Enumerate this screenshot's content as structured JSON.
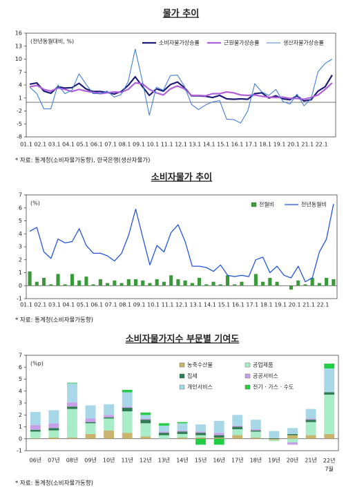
{
  "chart_data": [
    {
      "type": "line",
      "title": "물가 추이",
      "ylabel": "(전년동월대비, %)",
      "note": "* 자료: 통계청(소비자물가동향), 한국은행(생산자물가)",
      "categories": [
        "01.1",
        null,
        "02.1",
        null,
        "03.1",
        null,
        "04.1",
        null,
        "05.1",
        null,
        "06.1",
        null,
        "07.1",
        null,
        "08.1",
        null,
        "09.1",
        null,
        "10.1",
        null,
        "11.1",
        null,
        "12.1",
        null,
        "13.1",
        null,
        "14.1",
        null,
        "15.1",
        null,
        "16.1",
        null,
        "17.1",
        null,
        "18.1",
        null,
        "19.1",
        null,
        "20.1",
        null,
        "21.1",
        null,
        "22.1",
        null
      ],
      "series": [
        {
          "name": "소비자물가상승률",
          "color": "#1c1c78",
          "width": 2.2,
          "values": [
            4.2,
            4.5,
            2.6,
            2.1,
            3.6,
            3.3,
            3.4,
            4.4,
            3.1,
            2.5,
            2.5,
            2.3,
            1.9,
            2.5,
            3.9,
            5.9,
            3.7,
            1.6,
            3.1,
            2.6,
            4.1,
            4.7,
            3.4,
            1.5,
            1.5,
            1.4,
            1.1,
            1.6,
            0.8,
            0.7,
            0.8,
            0.7,
            2.0,
            2.2,
            1.0,
            1.5,
            0.8,
            0.6,
            1.5,
            0.3,
            0.6,
            2.6,
            3.6,
            6.3
          ]
        },
        {
          "name": "근원물가상승률",
          "color": "#b060d8",
          "width": 2.2,
          "values": [
            3.6,
            3.9,
            3.0,
            2.6,
            3.3,
            3.0,
            2.5,
            3.0,
            2.6,
            2.3,
            2.0,
            2.2,
            2.4,
            2.3,
            3.0,
            4.5,
            4.3,
            3.0,
            2.2,
            1.7,
            3.1,
            3.8,
            3.1,
            1.6,
            1.6,
            1.5,
            2.0,
            2.0,
            2.4,
            2.2,
            1.7,
            1.6,
            1.7,
            1.4,
            1.2,
            1.1,
            1.2,
            0.9,
            0.9,
            0.7,
            1.1,
            1.7,
            3.0,
            4.5
          ]
        },
        {
          "name": "생산자물가상승률",
          "color": "#3f7fd8",
          "width": 1.1,
          "values": [
            3.5,
            2.0,
            -1.5,
            -1.5,
            4.0,
            2.0,
            2.8,
            6.6,
            4.2,
            2.0,
            2.0,
            2.6,
            1.2,
            1.8,
            4.8,
            12.3,
            5.0,
            -3.0,
            3.5,
            2.8,
            6.2,
            6.3,
            3.7,
            -0.5,
            -1.7,
            -0.6,
            0.1,
            0.4,
            -3.9,
            -4.0,
            -4.8,
            -2.0,
            4.3,
            2.4,
            1.6,
            3.0,
            0.2,
            -0.4,
            1.9,
            -0.8,
            0.8,
            7.1,
            9.0,
            10.0
          ]
        }
      ],
      "ylim": [
        -8,
        16
      ],
      "yticks": [
        -8,
        -5,
        -2,
        1,
        4,
        7,
        10,
        13,
        16
      ],
      "legend": "upper right"
    },
    {
      "type": "combo",
      "title": "소비자물가 추이",
      "ylabel": "(%)",
      "note": "* 자료: 통계청(소비자물가동향)",
      "categories": [
        "01.1",
        null,
        "02.1",
        null,
        "03.1",
        null,
        "04.1",
        null,
        "05.1",
        null,
        "06.1",
        null,
        "07.1",
        null,
        "08.1",
        null,
        "09.1",
        null,
        "10.1",
        null,
        "11.1",
        null,
        "12.1",
        null,
        "13.1",
        null,
        "14.1",
        null,
        "15.1",
        null,
        "16.1",
        null,
        "17.1",
        null,
        "18.1",
        null,
        "19.1",
        null,
        "20.1",
        null,
        "21.1",
        null,
        "22.1",
        null
      ],
      "series": [
        {
          "name": "전월비",
          "color": "#3a9a3a",
          "kind": "bar",
          "values": [
            1.1,
            0.3,
            0.6,
            0.1,
            0.9,
            0.1,
            0.9,
            0.4,
            0.7,
            0.1,
            0.5,
            0.2,
            0.4,
            0.2,
            0.5,
            0.5,
            0.4,
            0.2,
            0.5,
            0.3,
            0.8,
            0.5,
            0.4,
            0.2,
            0.6,
            0.1,
            0.3,
            0.1,
            0.8,
            0.1,
            0.3,
            0.0,
            0.9,
            0.3,
            0.6,
            0.3,
            0.0,
            -0.3,
            0.4,
            0.1,
            0.6,
            0.2,
            0.6,
            0.5
          ]
        },
        {
          "name": "전년동월비",
          "color": "#2255dd",
          "kind": "line",
          "values": [
            4.2,
            4.5,
            2.6,
            2.1,
            3.6,
            3.3,
            3.4,
            4.4,
            3.1,
            2.5,
            2.5,
            2.3,
            1.9,
            2.5,
            3.9,
            5.9,
            3.7,
            1.6,
            3.1,
            2.6,
            4.1,
            4.7,
            3.4,
            1.5,
            1.5,
            1.4,
            1.1,
            1.6,
            0.8,
            0.7,
            0.8,
            0.7,
            2.0,
            2.2,
            1.0,
            1.5,
            0.8,
            0.6,
            1.5,
            0.3,
            0.6,
            2.6,
            3.6,
            6.3
          ]
        }
      ],
      "ylim": [
        -1,
        7
      ],
      "yticks": [
        -1,
        0,
        1,
        2,
        3,
        4,
        5,
        6,
        7
      ],
      "legend": "upper right"
    },
    {
      "type": "stacked_bar",
      "title": "소비자물가지수 부문별 기여도",
      "ylabel": "(%p)",
      "note": "* 자료: 통계청(소비자물가동향)",
      "categories": [
        "06년",
        "07년",
        "08년",
        "09년",
        "10년",
        "11년",
        "12년",
        "13년",
        "14년",
        "15년",
        "16년",
        "17년",
        "18년",
        "19년",
        "20년",
        "21년",
        "22년\n7월"
      ],
      "series": [
        {
          "name": "농축수산물",
          "color": "#c8b46e",
          "values": [
            0.05,
            0.1,
            0.1,
            0.4,
            0.7,
            0.5,
            0.2,
            0.0,
            0.1,
            0.1,
            0.1,
            0.3,
            0.1,
            -0.1,
            0.3,
            0.3,
            0.4
          ]
        },
        {
          "name": "공업제품",
          "color": "#a8ecc8",
          "values": [
            0.55,
            0.6,
            2.4,
            0.9,
            1.0,
            1.8,
            1.1,
            0.3,
            0.3,
            0.2,
            0.0,
            0.5,
            0.5,
            -0.1,
            -0.3,
            1.1,
            3.3
          ]
        },
        {
          "name": "집세",
          "color": "#2e7d52",
          "values": [
            0.15,
            0.2,
            0.2,
            0.1,
            0.1,
            0.3,
            0.3,
            0.2,
            0.2,
            0.2,
            0.2,
            0.2,
            0.1,
            0.05,
            0.1,
            0.2,
            0.2
          ]
        },
        {
          "name": "공공서비스",
          "color": "#c8a0e8",
          "values": [
            0.4,
            0.4,
            0.35,
            0.3,
            0.2,
            0.1,
            0.1,
            0.1,
            0.1,
            0.1,
            0.2,
            0.1,
            0.1,
            0.0,
            -0.2,
            0.1,
            0.0
          ]
        },
        {
          "name": "개인서비스",
          "color": "#a8d8e8",
          "values": [
            1.1,
            1.1,
            1.6,
            1.1,
            0.9,
            1.2,
            0.3,
            0.5,
            0.6,
            0.6,
            1.0,
            0.9,
            0.8,
            0.6,
            0.5,
            0.8,
            2.0
          ]
        },
        {
          "name": "전기 · 가스 · 수도",
          "color": "#22cc44",
          "values": [
            0.0,
            0.0,
            0.05,
            0.0,
            0.0,
            0.2,
            0.2,
            0.2,
            0.1,
            -0.5,
            -0.5,
            0.0,
            0.0,
            0.0,
            0.0,
            0.0,
            0.4
          ]
        }
      ],
      "ylim": [
        -1,
        7
      ],
      "yticks": [
        -1,
        0,
        1,
        2,
        3,
        4,
        5,
        6,
        7
      ],
      "legend": "upper center"
    }
  ]
}
